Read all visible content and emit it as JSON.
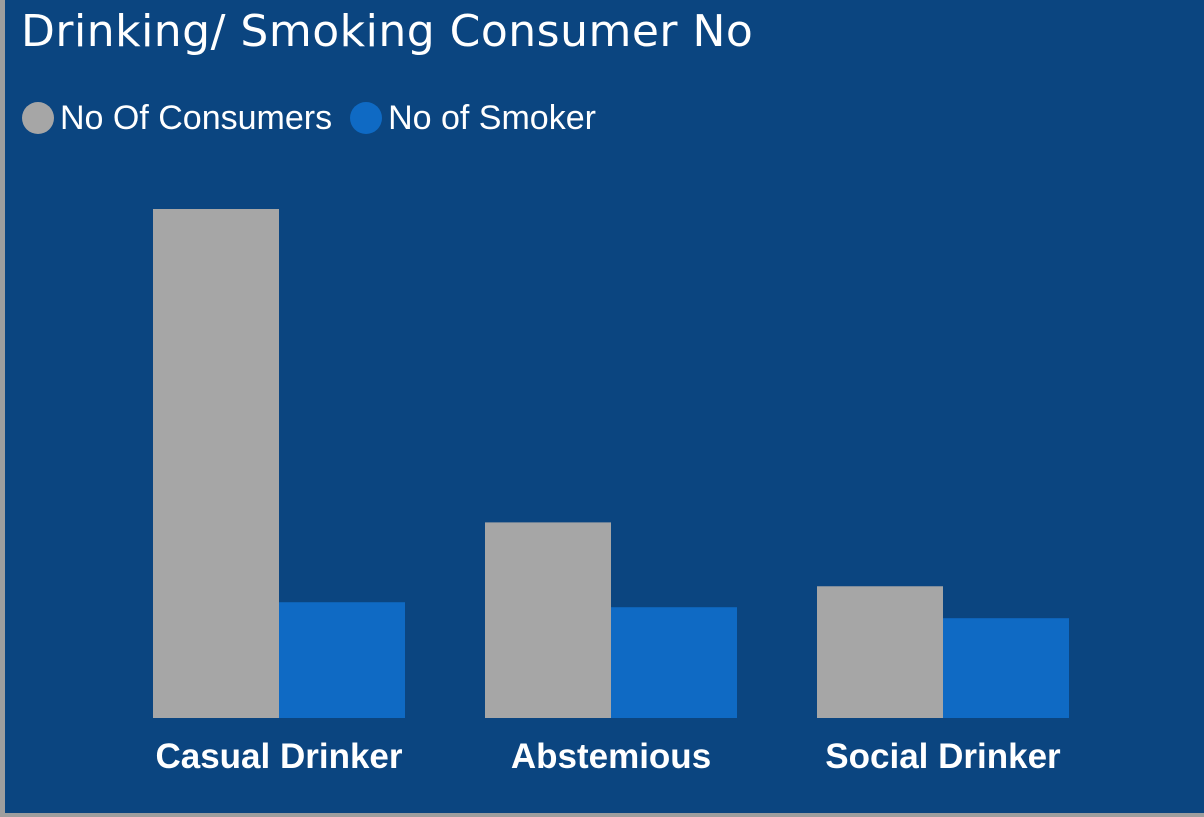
{
  "chart_data": {
    "type": "bar",
    "title": "Drinking/ Smoking Consumer No",
    "categories": [
      "Casual Drinker",
      "Abstemious",
      "Social Drinker"
    ],
    "series": [
      {
        "name": "No Of Consumers",
        "color": "#a6a6a6",
        "values": [
          510,
          196,
          132
        ]
      },
      {
        "name": "No of Smoker",
        "color": "#0f6ac4",
        "values": [
          116,
          111,
          100
        ]
      }
    ],
    "ylim": [
      0,
      510
    ],
    "legend_position": "top-left",
    "grid": false,
    "background": "#0b4580"
  }
}
